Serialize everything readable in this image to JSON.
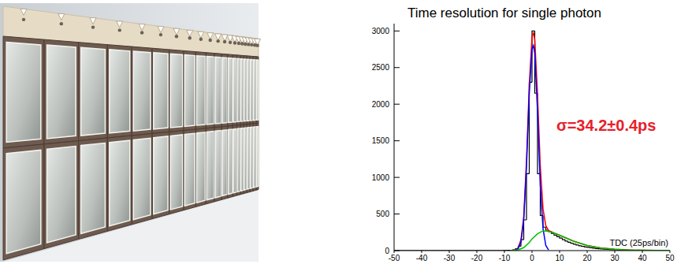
{
  "chart_data": {
    "type": "histogram",
    "title": "Time resolution for single photon",
    "x_label": "TDC (25ps/bin)",
    "annotation": "σ=34.2±0.4ps",
    "color": "#000000",
    "bins": [
      -50,
      -49,
      -48,
      -47,
      -46,
      -45,
      -44,
      -43,
      -42,
      -41,
      -40,
      -39,
      -38,
      -37,
      -36,
      -35,
      -34,
      -33,
      -32,
      -31,
      -30,
      -29,
      -28,
      -27,
      -26,
      -25,
      -24,
      -23,
      -22,
      -21,
      -20,
      -19,
      -18,
      -17,
      -16,
      -15,
      -14,
      -13,
      -12,
      -11,
      -10,
      -9,
      -8,
      -7,
      -6,
      -5,
      -4,
      -3,
      -2,
      -1,
      0,
      1,
      2,
      3,
      4,
      5,
      6,
      7,
      8,
      9,
      10,
      11,
      12,
      13,
      14,
      15,
      16,
      17,
      18,
      19,
      20,
      21,
      22,
      23,
      24,
      25,
      26,
      27,
      28,
      29,
      30,
      31,
      32,
      33,
      34,
      35,
      36,
      37,
      38,
      39,
      40,
      41,
      42,
      43,
      44,
      45,
      46,
      47,
      48,
      49,
      50
    ],
    "counts": [
      0,
      0,
      0,
      0,
      0,
      0,
      0,
      0,
      0,
      0,
      0,
      0,
      0,
      0,
      0,
      0,
      0,
      0,
      0,
      0,
      0,
      0,
      0,
      0,
      0,
      0,
      0,
      0,
      0,
      0,
      0,
      0,
      0,
      0,
      0,
      0,
      0,
      0,
      0,
      0,
      2,
      3,
      5,
      10,
      25,
      60,
      150,
      420,
      1050,
      2300,
      3000,
      2150,
      1050,
      480,
      320,
      280,
      260,
      235,
      210,
      190,
      170,
      150,
      130,
      115,
      100,
      88,
      76,
      66,
      58,
      50,
      44,
      38,
      33,
      29,
      25,
      22,
      19,
      17,
      15,
      13,
      11,
      10,
      9,
      8,
      7,
      6,
      6,
      5,
      5,
      4,
      4,
      3,
      3,
      3,
      2,
      2,
      2,
      2,
      1,
      1
    ],
    "series": [
      {
        "type": "line",
        "color": "#ff0000",
        "x": [
          -8,
          -6,
          -5,
          -4,
          -3,
          -2,
          -1,
          0,
          0.5,
          1,
          2,
          3,
          4,
          5,
          6,
          8,
          10,
          15,
          20,
          25,
          30,
          35,
          40,
          45,
          50
        ],
        "values": [
          0,
          8,
          40,
          150,
          460,
          1230,
          2260,
          2910,
          2980,
          2880,
          2130,
          1150,
          570,
          340,
          275,
          240,
          210,
          130,
          70,
          35,
          18,
          9,
          5,
          3,
          2
        ]
      },
      {
        "type": "line",
        "color": "#0000ff",
        "x": [
          -8,
          -6,
          -5,
          -4,
          -3,
          -2,
          -1,
          0,
          0.5,
          1,
          2,
          3,
          4,
          5,
          6
        ],
        "values": [
          0,
          5,
          30,
          120,
          420,
          1150,
          2150,
          2750,
          2800,
          2700,
          1900,
          900,
          300,
          70,
          10
        ]
      },
      {
        "type": "line",
        "color": "#00c000",
        "x": [
          -8,
          -5,
          -3,
          -1,
          0,
          2,
          4,
          6,
          8,
          10,
          15,
          20,
          25,
          30,
          35,
          40,
          45,
          50
        ],
        "values": [
          0,
          10,
          40,
          110,
          160,
          230,
          270,
          265,
          240,
          210,
          130,
          70,
          35,
          18,
          9,
          5,
          3,
          2
        ]
      }
    ],
    "xlim": [
      -50,
      50
    ],
    "xticks": [
      -50,
      -40,
      -30,
      -20,
      -10,
      0,
      10,
      20,
      30,
      40,
      50
    ],
    "ylim": [
      0,
      3100
    ],
    "yticks": [
      0,
      500,
      1000,
      1500,
      2000,
      2500,
      3000
    ],
    "grid": false
  }
}
